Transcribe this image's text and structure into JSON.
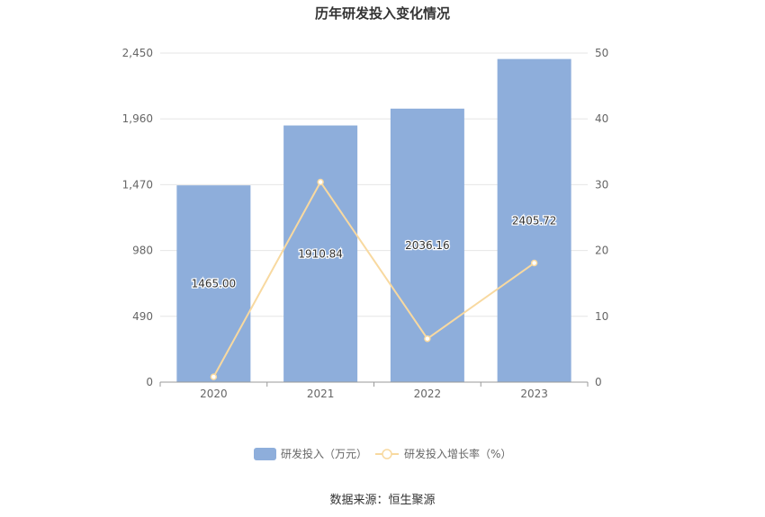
{
  "chart_data": {
    "type": "bar",
    "title": "历年研发投入变化情况",
    "categories": [
      "2020",
      "2021",
      "2022",
      "2023"
    ],
    "series": [
      {
        "name": "研发投入（万元）",
        "type": "bar",
        "axis": "left",
        "values": [
          1465.0,
          1910.84,
          2036.16,
          2405.72
        ],
        "labels": [
          "1465.00",
          "1910.84",
          "2036.16",
          "2405.72"
        ],
        "color": "#8eaedb"
      },
      {
        "name": "研发投入增长率（%）",
        "type": "line",
        "axis": "right",
        "values": [
          0.8,
          30.4,
          6.6,
          18.1
        ],
        "color": "#f8d9a0"
      }
    ],
    "y_left": {
      "ylim": [
        0,
        2450
      ],
      "ticks": [
        "0",
        "490",
        "980",
        "1,470",
        "1,960",
        "2,450"
      ]
    },
    "y_right": {
      "ylim": [
        0,
        50
      ],
      "ticks": [
        "0",
        "10",
        "20",
        "30",
        "40",
        "50"
      ]
    },
    "grid": true,
    "legend_position": "bottom"
  },
  "footer": {
    "source": "数据来源：恒生聚源"
  }
}
